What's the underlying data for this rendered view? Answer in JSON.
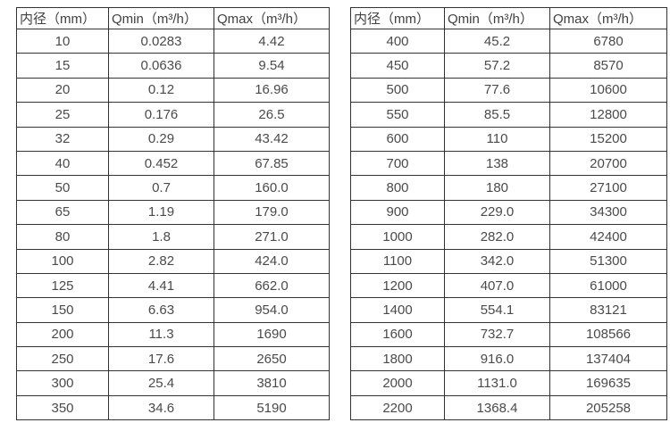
{
  "page": {
    "background_color": "#ffffff",
    "border_color": "#333333",
    "text_color": "#4a4a4a"
  },
  "chart_data": [
    {
      "type": "table",
      "title": "",
      "headers": [
        "内径（mm）",
        "Qmin（m³/h）",
        "Qmax（m³/h）"
      ],
      "rows": [
        [
          "10",
          "0.0283",
          "4.42"
        ],
        [
          "15",
          "0.0636",
          "9.54"
        ],
        [
          "20",
          "0.12",
          "16.96"
        ],
        [
          "25",
          "0.176",
          "26.5"
        ],
        [
          "32",
          "0.29",
          "43.42"
        ],
        [
          "40",
          "0.452",
          "67.85"
        ],
        [
          "50",
          "0.7",
          "160.0"
        ],
        [
          "65",
          "1.19",
          "179.0"
        ],
        [
          "80",
          "1.8",
          "271.0"
        ],
        [
          "100",
          "2.82",
          "424.0"
        ],
        [
          "125",
          "4.41",
          "662.0"
        ],
        [
          "150",
          "6.63",
          "954.0"
        ],
        [
          "200",
          "11.3",
          "1690"
        ],
        [
          "250",
          "17.6",
          "2650"
        ],
        [
          "300",
          "25.4",
          "3810"
        ],
        [
          "350",
          "34.6",
          "5190"
        ]
      ]
    },
    {
      "type": "table",
      "title": "",
      "headers": [
        "内径（mm）",
        "Qmin（m³/h）",
        "Qmax（m³/h）"
      ],
      "rows": [
        [
          "400",
          "45.2",
          "6780"
        ],
        [
          "450",
          "57.2",
          "8570"
        ],
        [
          "500",
          "77.6",
          "10600"
        ],
        [
          "550",
          "85.5",
          "12800"
        ],
        [
          "600",
          "110",
          "15200"
        ],
        [
          "700",
          "138",
          "20700"
        ],
        [
          "800",
          "180",
          "27100"
        ],
        [
          "900",
          "229.0",
          "34300"
        ],
        [
          "1000",
          "282.0",
          "42400"
        ],
        [
          "1100",
          "342.0",
          "51300"
        ],
        [
          "1200",
          "407.0",
          "61000"
        ],
        [
          "1400",
          "554.1",
          "83121"
        ],
        [
          "1600",
          "732.7",
          "108566"
        ],
        [
          "1800",
          "916.0",
          "137404"
        ],
        [
          "2000",
          "1131.0",
          "169635"
        ],
        [
          "2200",
          "1368.4",
          "205258"
        ]
      ]
    }
  ]
}
